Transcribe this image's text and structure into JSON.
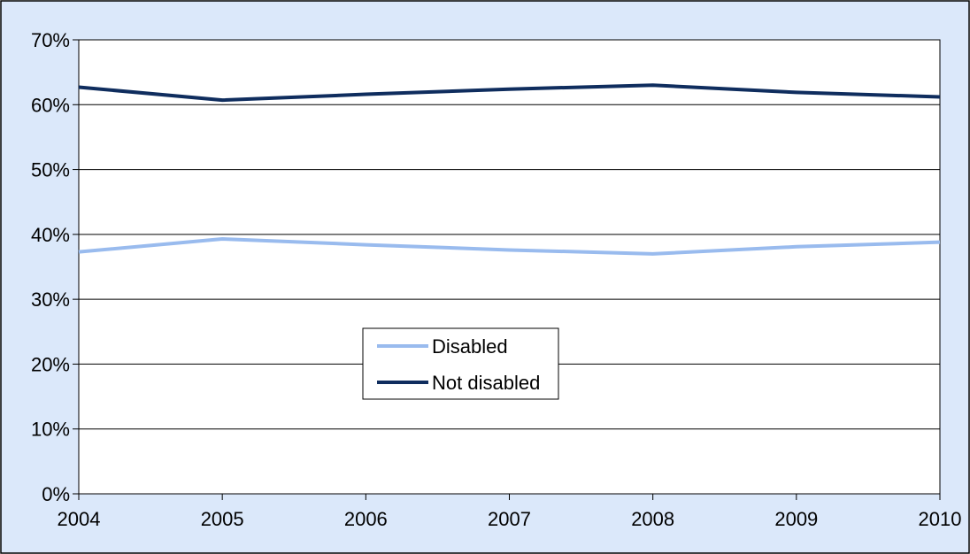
{
  "chart_data": {
    "type": "line",
    "title": "",
    "xlabel": "",
    "ylabel": "",
    "x": [
      2004,
      2005,
      2006,
      2007,
      2008,
      2009,
      2010
    ],
    "ylim": [
      0,
      70
    ],
    "y_ticks": [
      "0%",
      "10%",
      "20%",
      "30%",
      "40%",
      "50%",
      "60%",
      "70%"
    ],
    "y_tick_values": [
      0,
      10,
      20,
      30,
      40,
      50,
      60,
      70
    ],
    "x_ticks": [
      "2004",
      "2005",
      "2006",
      "2007",
      "2008",
      "2009",
      "2010"
    ],
    "grid": true,
    "legend_position": "center",
    "series": [
      {
        "name": "Disabled",
        "color": "#99bbee",
        "values": [
          37.3,
          39.3,
          38.4,
          37.6,
          37.0,
          38.1,
          38.8
        ]
      },
      {
        "name": "Not disabled",
        "color": "#0f2d5e",
        "values": [
          62.7,
          60.7,
          61.6,
          62.4,
          63.0,
          61.9,
          61.2
        ]
      }
    ],
    "colors": {
      "background": "#dbe8fa",
      "plot_area": "#ffffff",
      "gridline": "#000000"
    }
  }
}
